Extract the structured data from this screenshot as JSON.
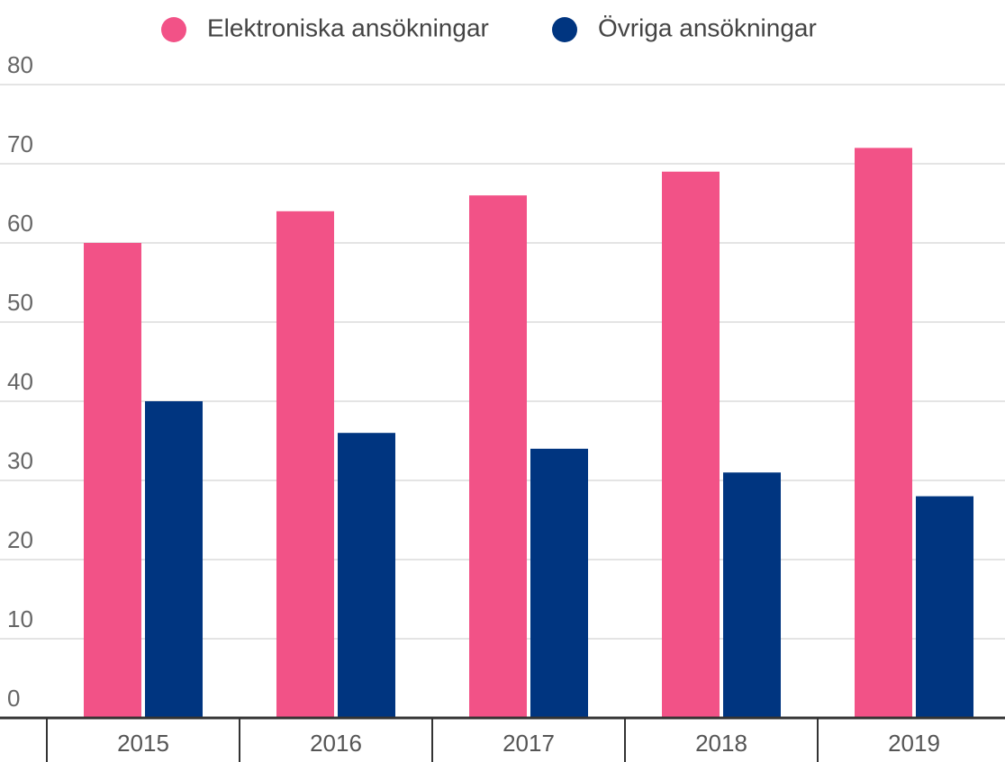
{
  "chart_data": {
    "type": "bar",
    "categories": [
      "2015",
      "2016",
      "2017",
      "2018",
      "2019"
    ],
    "series": [
      {
        "name": "Elektroniska ansökningar",
        "color": "#f25287",
        "values": [
          60,
          64,
          66,
          69,
          72
        ]
      },
      {
        "name": "Övriga ansökningar",
        "color": "#003580",
        "values": [
          40,
          36,
          34,
          31,
          28
        ]
      }
    ],
    "ylim": [
      0,
      80
    ],
    "yticks": [
      0,
      10,
      20,
      30,
      40,
      50,
      60,
      70,
      80
    ],
    "grid": true
  }
}
